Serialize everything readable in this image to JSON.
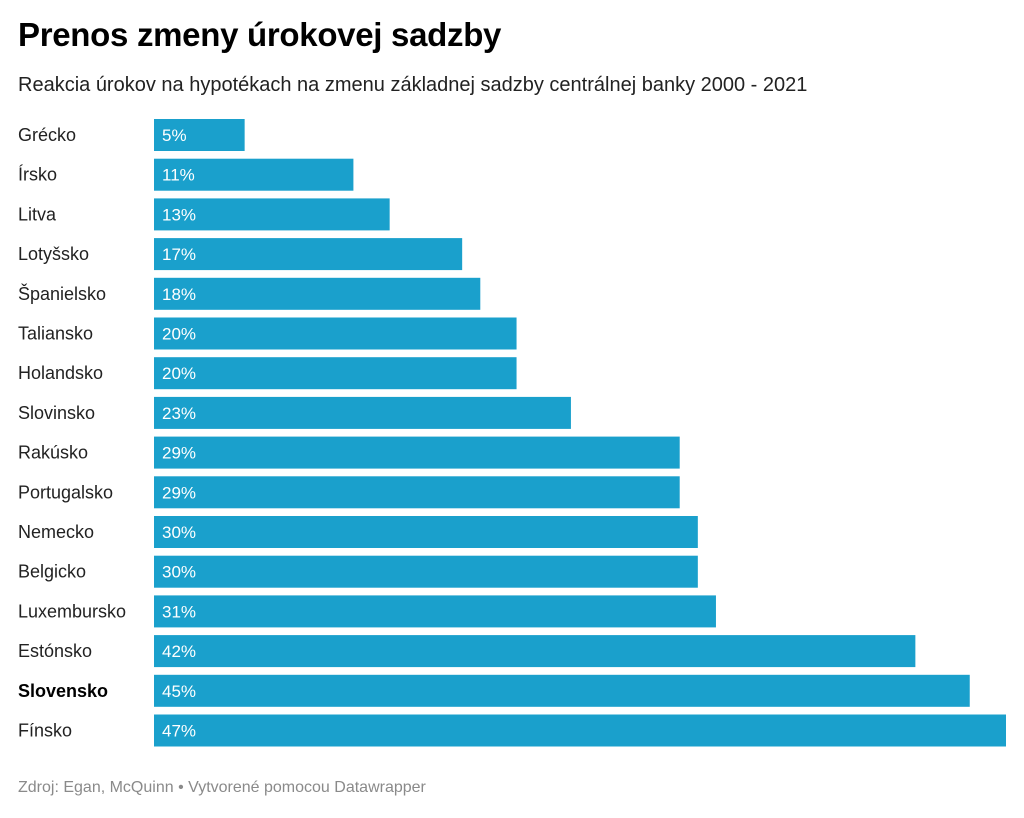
{
  "header": {
    "title": "Prenos zmeny úrokovej sadzby",
    "subtitle": "Reakcia úrokov na hypotékach na zmenu základnej sadzby centrálnej banky 2000 - 2021"
  },
  "footer": {
    "text": "Zdroj: Egan, McQuinn • Vytvorené pomocou Datawrapper"
  },
  "colors": {
    "bar": "#1aa0cc",
    "value_label": "#ffffff"
  },
  "chart_data": {
    "type": "bar",
    "orientation": "horizontal",
    "title": "Prenos zmeny úrokovej sadzby",
    "subtitle": "Reakcia úrokov na hypotékach na zmenu základnej sadzby centrálnej banky 2000 - 2021",
    "xlabel": "",
    "ylabel": "",
    "unit": "%",
    "xlim": [
      0,
      47
    ],
    "grid": false,
    "legend": "none",
    "highlighted": [
      "Slovensko"
    ],
    "categories": [
      "Grécko",
      "Írsko",
      "Litva",
      "Lotyšsko",
      "Španielsko",
      "Taliansko",
      "Holandsko",
      "Slovinsko",
      "Rakúsko",
      "Portugalsko",
      "Nemecko",
      "Belgicko",
      "Luxembursko",
      "Estónsko",
      "Slovensko",
      "Fínsko"
    ],
    "values": [
      5,
      11,
      13,
      17,
      18,
      20,
      20,
      23,
      29,
      29,
      30,
      30,
      31,
      42,
      45,
      47
    ],
    "value_labels": [
      "5%",
      "11%",
      "13%",
      "17%",
      "18%",
      "20%",
      "20%",
      "23%",
      "29%",
      "29%",
      "30%",
      "30%",
      "31%",
      "42%",
      "45%",
      "47%"
    ]
  }
}
